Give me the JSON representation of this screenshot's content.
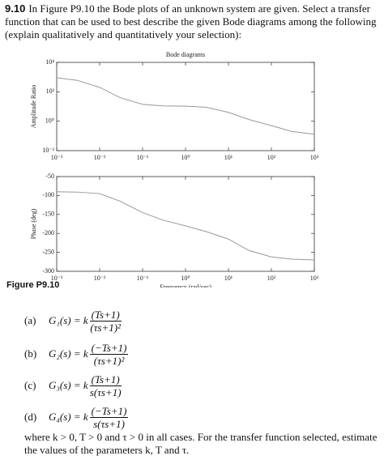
{
  "problem": {
    "number": "9.10",
    "text": "In Figure P9.10 the Bode plots of an unknown system are given. Select a transfer function that can be used to best describe the given Bode diagrams among the following (explain qualitatively and quantitatively your selection):"
  },
  "chart_data": [
    {
      "type": "line",
      "title": "Bode diagrams",
      "y_label": "Amplitude Ratio",
      "x_log": true,
      "y_log": true,
      "color": "#999999",
      "x": [
        0.001,
        0.003,
        0.01,
        0.03,
        0.1,
        0.3,
        1,
        3,
        10,
        30,
        100,
        300,
        1000
      ],
      "values": [
        900,
        600,
        200,
        40,
        14,
        11,
        10.5,
        9,
        4,
        1.3,
        0.5,
        0.2,
        0.13
      ],
      "xlim": [
        0.001,
        1000
      ],
      "xticks": [
        {
          "value": 0.001,
          "label": "10⁻³"
        },
        {
          "value": 0.01,
          "label": "10⁻²"
        },
        {
          "value": 0.1,
          "label": "10⁻¹"
        },
        {
          "value": 1,
          "label": "10⁰"
        },
        {
          "value": 10,
          "label": "10¹"
        },
        {
          "value": 100,
          "label": "10²"
        },
        {
          "value": 1000,
          "label": "10³"
        }
      ],
      "ylim": [
        0.01,
        10000
      ],
      "yticks": [
        {
          "value": 0.01,
          "label": "10⁻²"
        },
        {
          "value": 1,
          "label": "10⁰"
        },
        {
          "value": 100,
          "label": "10²"
        },
        {
          "value": 10000,
          "label": "10⁴"
        }
      ]
    },
    {
      "type": "line",
      "y_label": "Phase (deg)",
      "x_label": "Frequency (rad/sec)",
      "x_log": true,
      "y_log": false,
      "color": "#999999",
      "x": [
        0.001,
        0.003,
        0.01,
        0.03,
        0.1,
        0.3,
        1,
        3,
        10,
        30,
        100,
        300,
        1000
      ],
      "values": [
        -90,
        -91,
        -95,
        -115,
        -145,
        -165,
        -180,
        -195,
        -215,
        -245,
        -262,
        -268,
        -270
      ],
      "xlim": [
        0.001,
        1000
      ],
      "xticks": [
        {
          "value": 0.001,
          "label": "10⁻³"
        },
        {
          "value": 0.01,
          "label": "10⁻²"
        },
        {
          "value": 0.1,
          "label": "10⁻¹"
        },
        {
          "value": 1,
          "label": "10⁰"
        },
        {
          "value": 10,
          "label": "10¹"
        },
        {
          "value": 100,
          "label": "10²"
        },
        {
          "value": 1000,
          "label": "10³"
        }
      ],
      "ylim": [
        -300,
        -50
      ],
      "yticks": [
        -50,
        -100,
        -150,
        -200,
        -250,
        -300
      ]
    }
  ],
  "figure_label": "Figure P9.10",
  "options": [
    {
      "letter": "(a)",
      "lhs": "G₁(s) = k",
      "num": "(Ts+1)",
      "den": "(τs+1)²"
    },
    {
      "letter": "(b)",
      "lhs": "G₂(s) = k",
      "num": "(−Ts+1)",
      "den": "(τs+1)²"
    },
    {
      "letter": "(c)",
      "lhs": "G₃(s) = k",
      "num": "(Ts+1)",
      "den": "s(τs+1)"
    },
    {
      "letter": "(d)",
      "lhs": "G₄(s) = k",
      "num": "(−Ts+1)",
      "den": "s(τs+1)"
    }
  ],
  "footer": "where k > 0, T > 0 and τ > 0 in all cases. For the transfer function selected, estimate the values of the parameters k, T and τ."
}
